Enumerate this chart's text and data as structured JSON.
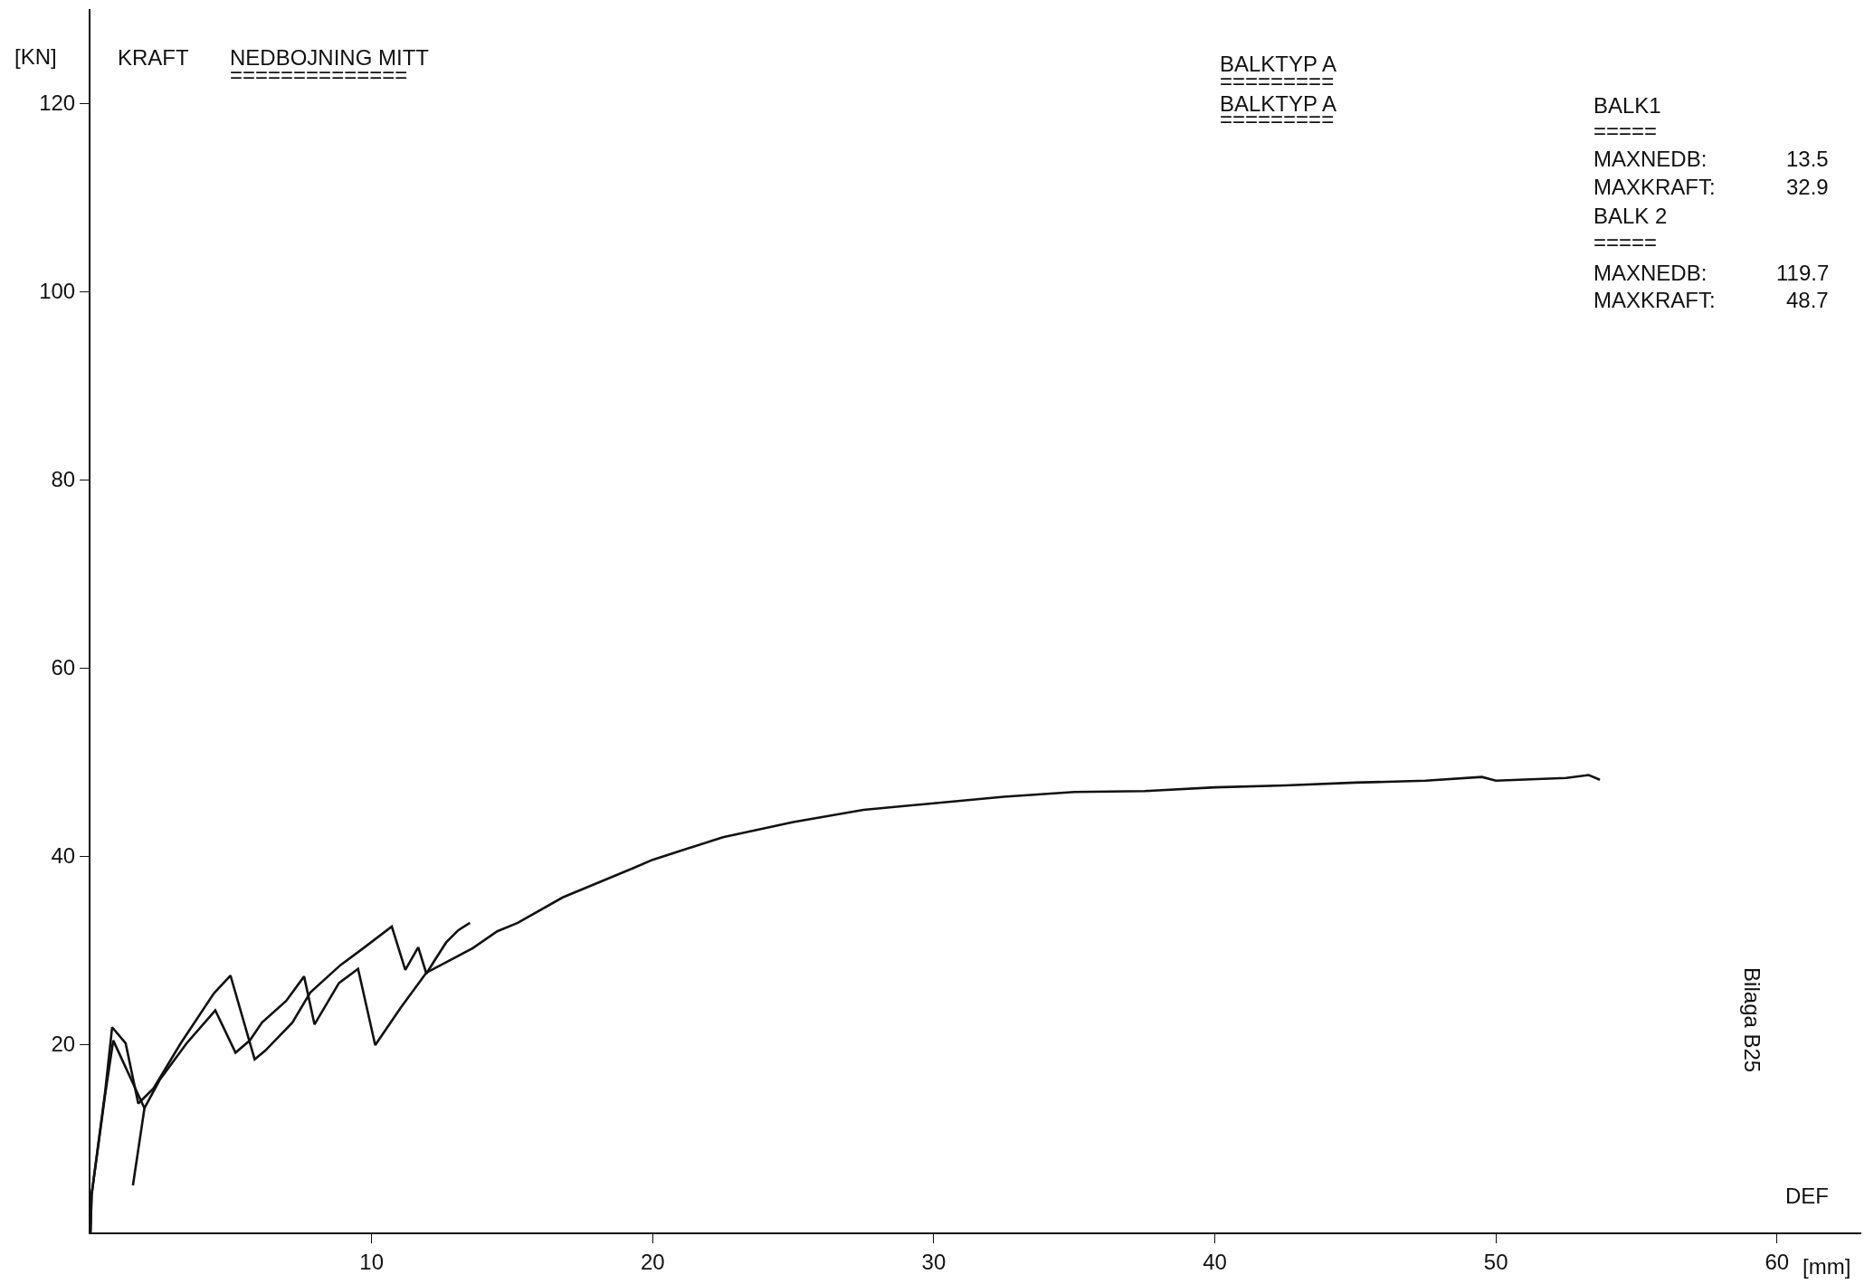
{
  "chart_data": {
    "type": "line",
    "title": "NEDBOJNING MITT",
    "ylabel": "[KN]",
    "xlabel": "[mm]",
    "annotations": [
      "KRAFT",
      "==============",
      "BALKTYP A",
      "=========",
      "BALKTYP A",
      "=========",
      "BALK1",
      "=====",
      "MAXNEDB:",
      "13.5",
      "MAXKRAFT:",
      "32.9",
      "BALK 2",
      "=====",
      "MAXNEDB:",
      "119.7",
      "MAXKRAFT:",
      "48.7",
      "Bilaga B25",
      "DEF"
    ],
    "series": [
      {
        "color": "#111111",
        "x": [
          0,
          0.04,
          0.52,
          0.77,
          1.25,
          1.7,
          2.24,
          3.21,
          4.39,
          4.98,
          5.84,
          6.21,
          7.18,
          7.82,
          8.89,
          9.75,
          10.72,
          11.2,
          11.66,
          11.95,
          12.22,
          12.65,
          13.08,
          13.5
        ],
        "values": [
          0,
          4.0,
          14.9,
          21.8,
          20.1,
          13.7,
          15.3,
          20.1,
          25.4,
          27.3,
          18.4,
          19.3,
          22.3,
          25.5,
          28.4,
          30.3,
          32.5,
          27.9,
          30.3,
          27.5,
          28.8,
          30.8,
          32.1,
          32.9
        ]
      },
      {
        "color": "#111111",
        "x": [
          1.51,
          1.92,
          1.7,
          0,
          0.04,
          0.52,
          0.81,
          1.92,
          2.46,
          3.42,
          4.44,
          5.16,
          5.67,
          6.1,
          6.96,
          7.6,
          7.97,
          8.84,
          9.52,
          10.13,
          11.04,
          11.95,
          13.6,
          14.47,
          15.2,
          16.8,
          19.3,
          20,
          22.5,
          25,
          27.5,
          30,
          32.5,
          35,
          37.5,
          40,
          42.5,
          45,
          47.5,
          49.5,
          50,
          52.5,
          53.3,
          53.7
        ],
        "values": [
          5.0,
          13.2,
          null,
          0,
          4.0,
          14.6,
          20.4,
          13.2,
          16.2,
          20.1,
          23.6,
          19.1,
          20.4,
          22.3,
          24.6,
          27.2,
          22.1,
          26.5,
          28.0,
          19.9,
          23.9,
          27.6,
          30.2,
          32.0,
          32.9,
          35.6,
          38.7,
          39.6,
          42.0,
          43.6,
          44.9,
          45.6,
          46.3,
          46.8,
          46.9,
          47.3,
          47.5,
          47.8,
          48.0,
          48.4,
          48.0,
          48.3,
          48.6,
          48.1
        ]
      }
    ],
    "xlim": [
      0,
      63
    ],
    "ylim": [
      0,
      130
    ],
    "xticks": [
      10,
      20,
      30,
      40,
      50,
      60
    ],
    "yticks": [
      20,
      40,
      60,
      80,
      100,
      120
    ],
    "marker": "none",
    "line_style": "solid"
  }
}
